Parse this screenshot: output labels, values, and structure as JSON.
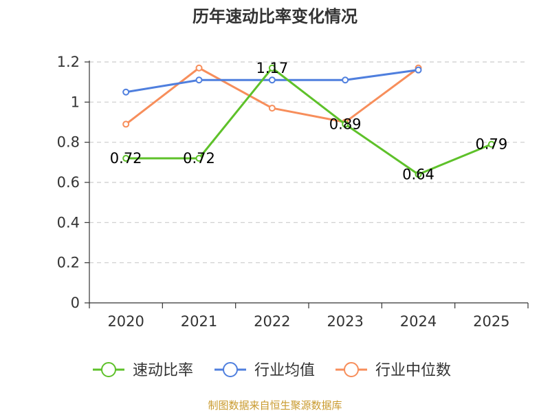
{
  "chart_data": {
    "type": "line",
    "title": "历年速动比率变化情况",
    "categories": [
      "2020",
      "2021",
      "2022",
      "2023",
      "2024",
      "2025"
    ],
    "ylim": [
      0,
      1.2
    ],
    "yticks": [
      "0",
      "0.2",
      "0.4",
      "0.6",
      "0.8",
      "1",
      "1.2"
    ],
    "grid": true,
    "legend_position": "bottom",
    "series": [
      {
        "name": "速动比率",
        "color": "#5ec12a",
        "labels": true,
        "values": [
          0.72,
          0.72,
          1.17,
          0.89,
          0.64,
          0.79
        ],
        "data_labels": [
          "0.72",
          "0.72",
          "1.17",
          "0.89",
          "0.64",
          "0.79"
        ]
      },
      {
        "name": "行业均值",
        "color": "#4f7fde",
        "labels": false,
        "values": [
          1.05,
          1.11,
          1.11,
          1.11,
          1.16,
          null
        ]
      },
      {
        "name": "行业中位数",
        "color": "#f78e5b",
        "labels": false,
        "values": [
          0.89,
          1.17,
          0.97,
          0.9,
          1.17,
          null
        ]
      }
    ]
  },
  "source": "制图数据来自恒生聚源数据库"
}
